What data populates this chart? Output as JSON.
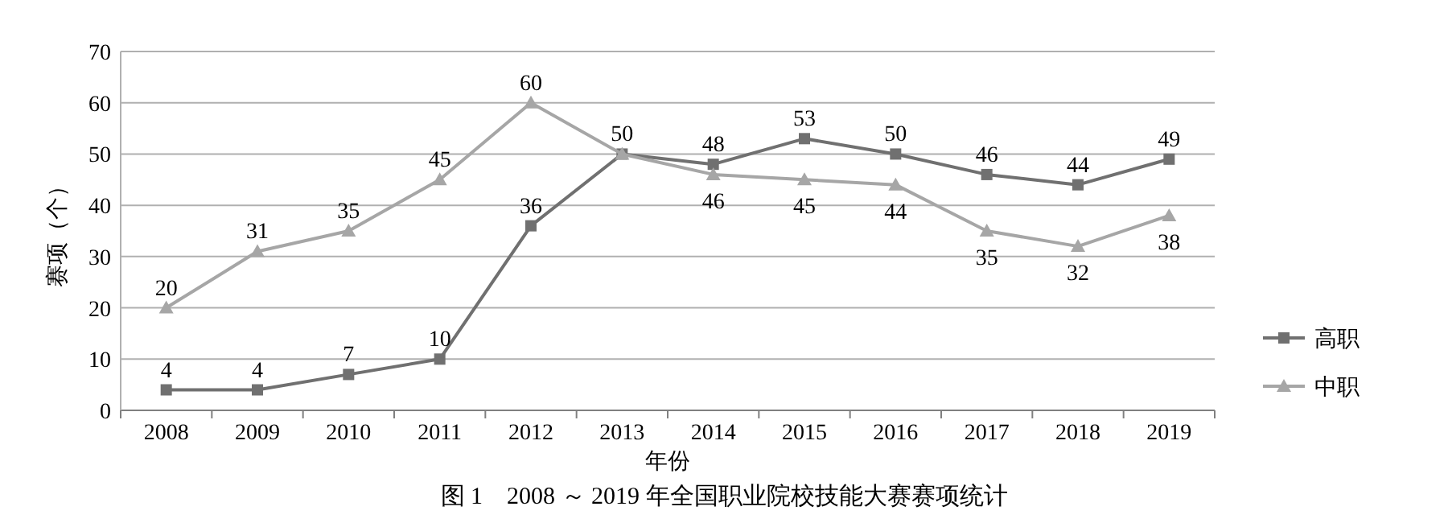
{
  "chart_data": {
    "type": "line",
    "title": "图 1　2008 ～ 2019 年全国职业院校技能大赛赛项统计",
    "xlabel": "年份",
    "ylabel": "赛项（个）",
    "categories": [
      "2008",
      "2009",
      "2010",
      "2011",
      "2012",
      "2013",
      "2014",
      "2015",
      "2016",
      "2017",
      "2018",
      "2019"
    ],
    "series": [
      {
        "name": "高职",
        "color": "#707070",
        "marker": "square",
        "values": [
          4,
          4,
          7,
          10,
          36,
          50,
          48,
          53,
          50,
          46,
          44,
          49
        ],
        "value_labels": [
          "4",
          "4",
          "7",
          "10",
          "36",
          "50",
          "48",
          "53",
          "50",
          "46",
          "44",
          "49"
        ]
      },
      {
        "name": "中职",
        "color": "#a6a6a6",
        "marker": "triangle",
        "values": [
          20,
          31,
          35,
          45,
          60,
          50,
          46,
          45,
          44,
          35,
          32,
          38
        ],
        "value_labels": [
          "20",
          "31",
          "35",
          "45",
          "60",
          null,
          "46",
          "45",
          "44",
          "35",
          "32",
          "38"
        ]
      }
    ],
    "ylim": [
      0,
      70
    ],
    "yticks": [
      0,
      10,
      20,
      30,
      40,
      50,
      60,
      70
    ],
    "grid": "y",
    "legend": "right",
    "line_style": "solid"
  }
}
